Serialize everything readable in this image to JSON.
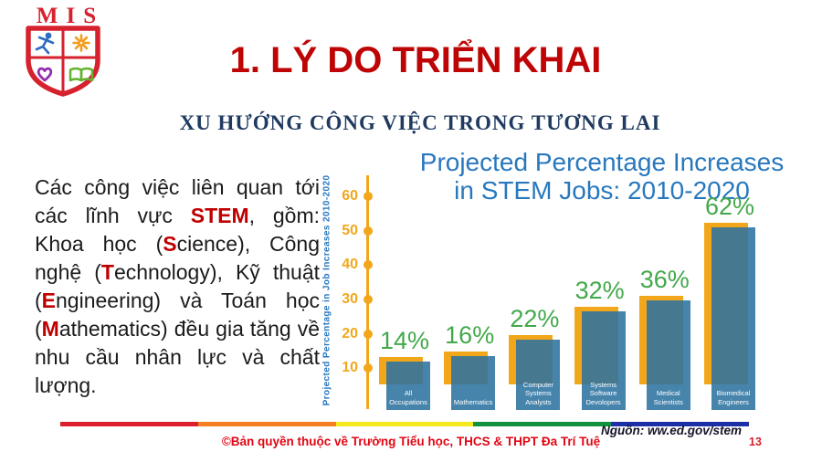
{
  "logo": {
    "text": "MIS"
  },
  "title": "1. LÝ DO TRIỂN KHAI",
  "subtitle": "XU HƯỚNG CÔNG VIỆC TRONG TƯƠNG LAI",
  "paragraph": {
    "segments": [
      {
        "t": "Các công việc liên quan tới các lĩnh vực ",
        "hl": false
      },
      {
        "t": "STEM",
        "hl": true
      },
      {
        "t": ", gồm: Khoa học (",
        "hl": false
      },
      {
        "t": "S",
        "hl": true
      },
      {
        "t": "cience), Công nghệ (",
        "hl": false
      },
      {
        "t": "T",
        "hl": true
      },
      {
        "t": "echnology), Kỹ thuật (",
        "hl": false
      },
      {
        "t": "E",
        "hl": true
      },
      {
        "t": "ngineering) và Toán học (",
        "hl": false
      },
      {
        "t": "M",
        "hl": true
      },
      {
        "t": "athematics) đều gia tăng về nhu cầu nhân lực và chất lượng.",
        "hl": false
      }
    ],
    "highlight_color": "#c00000"
  },
  "chart_data": {
    "type": "bar",
    "title": "Projected Percentage Increases in STEM Jobs: 2010-2020",
    "title_lines": [
      "Projected Percentage Increases",
      "in STEM Jobs: 2010-2020"
    ],
    "ylabel": "Projected Percentage in Job Increases 2010-2020",
    "xlabel": "",
    "yticks": [
      10,
      20,
      30,
      40,
      50,
      60
    ],
    "ylim": [
      0,
      65
    ],
    "grid": false,
    "legend": null,
    "categories": [
      "All Occupations",
      "Mathematics",
      "Computer Systems Analysts",
      "Systems Software Devolopers",
      "Medical Scientists",
      "Biomedical Engineers"
    ],
    "category_lines": [
      [
        "All",
        "Occupations"
      ],
      [
        "Mathematics"
      ],
      [
        "Computer",
        "Systems",
        "Analysts"
      ],
      [
        "Systems",
        "Software",
        "Devolopers"
      ],
      [
        "Medical",
        "Scientists"
      ],
      [
        "Biomedical",
        "Engineers"
      ]
    ],
    "values": [
      14,
      16,
      22,
      32,
      36,
      62
    ],
    "value_labels": [
      "14%",
      "16%",
      "22%",
      "32%",
      "36%",
      "62%"
    ],
    "colors": {
      "bar_front_blue": "#3d7ea8",
      "bar_back_gold": "#f2a71b",
      "value_label_green": "#43a84b",
      "axis_gold": "#f2a71b",
      "title_blue": "#2878be"
    }
  },
  "footer": {
    "copyright": "©Bản quyền thuộc về Trường Tiểu học, THCS & THPT Đa Trí Tuệ",
    "source": "Nguồn: ww.ed.gov/stem",
    "page_number": "13",
    "stripe_colors": [
      "#dc1f2e",
      "#f57e20",
      "#f5e81c",
      "#12923e",
      "#1d2fa6"
    ]
  }
}
